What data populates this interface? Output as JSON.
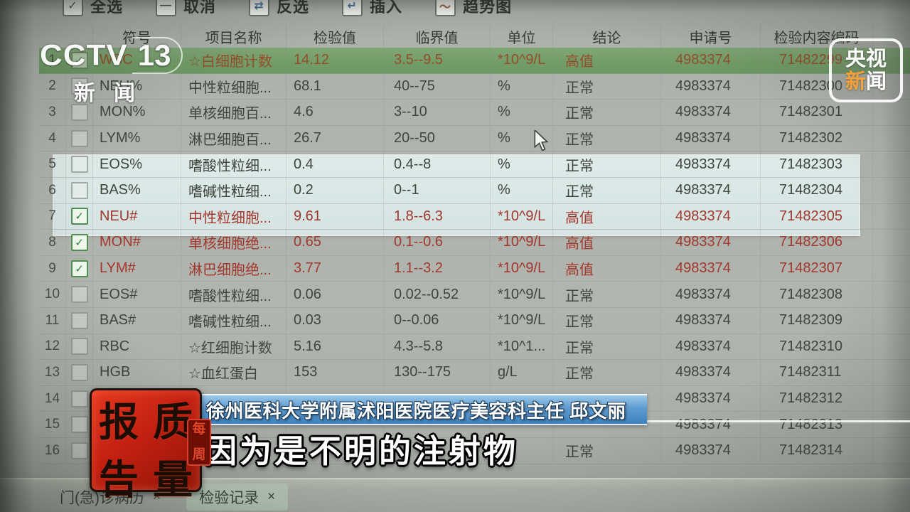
{
  "colors": {
    "selected_row_green": "#6f9f63",
    "selection_panel_blue": "#dcebe9",
    "abnormal_red": "#ae3429",
    "caption_bar_blue": "#5d9bd0",
    "stamp_red": "#c32112",
    "logo_orange": "#f2a13b",
    "screen_gray": "#aeb2ab"
  },
  "toolbar": {
    "buttons": [
      {
        "label": "全选",
        "icon": "checkbox-checked-icon",
        "glyph": "✓"
      },
      {
        "label": "取消",
        "icon": "minus-icon",
        "glyph": "—"
      },
      {
        "label": "反选",
        "icon": "swap-arrows-icon",
        "glyph": "⇄"
      },
      {
        "label": "插入",
        "icon": "insert-page-icon",
        "glyph": "↵"
      },
      {
        "label": "趋势图",
        "icon": "trend-chart-icon",
        "glyph": "〜"
      }
    ]
  },
  "table": {
    "headers": [
      "符号",
      "项目名称",
      "检验值",
      "临界值",
      "单位",
      "结论",
      "申请号",
      "检验内容编码"
    ],
    "rows": [
      {
        "num": "1",
        "checked": true,
        "state": "high",
        "sym": "WBC",
        "name": "☆白细胞计数",
        "val": "14.12",
        "rng": "3.5--9.5",
        "unit": "*10^9/L",
        "con": "高值",
        "req": "4983374",
        "code": "71482299"
      },
      {
        "num": "2",
        "checked": false,
        "state": "normal",
        "sym": "NEU%",
        "name": "中性粒细胞...",
        "val": "68.1",
        "rng": "40--75",
        "unit": "%",
        "con": "正常",
        "req": "4983374",
        "code": "71482300"
      },
      {
        "num": "3",
        "checked": false,
        "state": "normal",
        "sym": "MON%",
        "name": "单核细胞百...",
        "val": "4.6",
        "rng": "3--10",
        "unit": "%",
        "con": "正常",
        "req": "4983374",
        "code": "71482301"
      },
      {
        "num": "4",
        "checked": false,
        "state": "normal",
        "sym": "LYM%",
        "name": "淋巴细胞百...",
        "val": "26.7",
        "rng": "20--50",
        "unit": "%",
        "con": "正常",
        "req": "4983374",
        "code": "71482302"
      },
      {
        "num": "5",
        "checked": false,
        "state": "normal",
        "sym": "EOS%",
        "name": "嗜酸性粒细...",
        "val": "0.4",
        "rng": "0.4--8",
        "unit": "%",
        "con": "正常",
        "req": "4983374",
        "code": "71482303"
      },
      {
        "num": "6",
        "checked": false,
        "state": "normal",
        "sym": "BAS%",
        "name": "嗜碱性粒细...",
        "val": "0.2",
        "rng": "0--1",
        "unit": "%",
        "con": "正常",
        "req": "4983374",
        "code": "71482304"
      },
      {
        "num": "7",
        "checked": true,
        "state": "sel",
        "sym": "NEU#",
        "name": "中性粒细胞...",
        "val": "9.61",
        "rng": "1.8--6.3",
        "unit": "*10^9/L",
        "con": "高值",
        "req": "4983374",
        "code": "71482305"
      },
      {
        "num": "8",
        "checked": true,
        "state": "sel",
        "sym": "MON#",
        "name": "单核细胞绝...",
        "val": "0.65",
        "rng": "0.1--0.6",
        "unit": "*10^9/L",
        "con": "高值",
        "req": "4983374",
        "code": "71482306"
      },
      {
        "num": "9",
        "checked": true,
        "state": "sel",
        "sym": "LYM#",
        "name": "淋巴细胞绝...",
        "val": "3.77",
        "rng": "1.1--3.2",
        "unit": "*10^9/L",
        "con": "高值",
        "req": "4983374",
        "code": "71482307"
      },
      {
        "num": "10",
        "checked": false,
        "state": "normal",
        "sym": "EOS#",
        "name": "嗜酸性粒细...",
        "val": "0.06",
        "rng": "0.02--0.52",
        "unit": "*10^9/L",
        "con": "正常",
        "req": "4983374",
        "code": "71482308"
      },
      {
        "num": "11",
        "checked": false,
        "state": "normal",
        "sym": "BAS#",
        "name": "嗜碱性粒细...",
        "val": "0.03",
        "rng": "0--0.06",
        "unit": "*10^9/L",
        "con": "正常",
        "req": "4983374",
        "code": "71482309"
      },
      {
        "num": "12",
        "checked": false,
        "state": "normal",
        "sym": "RBC",
        "name": "☆红细胞计数",
        "val": "5.16",
        "rng": "4.3--5.8",
        "unit": "*10^1...",
        "con": "正常",
        "req": "4983374",
        "code": "71482310"
      },
      {
        "num": "13",
        "checked": false,
        "state": "normal",
        "sym": "HGB",
        "name": "☆血红蛋白",
        "val": "153",
        "rng": "130--175",
        "unit": "g/L",
        "con": "正常",
        "req": "4983374",
        "code": "71482311"
      },
      {
        "num": "14",
        "checked": false,
        "state": "normal",
        "sym": "",
        "name": "",
        "val": "",
        "rng": "",
        "unit": "",
        "con": "",
        "req": "4983374",
        "code": "71482312"
      },
      {
        "num": "15",
        "checked": false,
        "state": "normal",
        "sym": "",
        "name": "",
        "val": "",
        "rng": "",
        "unit": "",
        "con": "",
        "req": "4983374",
        "code": "71482313"
      },
      {
        "num": "16",
        "checked": false,
        "state": "normal",
        "sym": "",
        "name": "",
        "val": "",
        "rng": "",
        "unit": "",
        "con": "正常",
        "req": "4983374",
        "code": "71482314"
      }
    ]
  },
  "tabs": [
    {
      "label": "门(急)诊病历",
      "close": "×",
      "active": false
    },
    {
      "label": "检验记录",
      "close": "×",
      "active": true
    }
  ],
  "broadcast": {
    "channel_logo": {
      "word": "CCTV",
      "number": "13",
      "sub": "新闻"
    },
    "corner_logo": {
      "line1": "央视",
      "line2_first": "新",
      "line2_second": "闻"
    },
    "stamp": {
      "tl": "报",
      "tr": "质",
      "bl": "告",
      "br": "量",
      "side1": "每",
      "side2": "周"
    },
    "caption": {
      "speaker": "徐州医科大学附属沭阳医院医疗美容科主任 邱文丽",
      "speech": "因为是不明的注射物"
    }
  }
}
